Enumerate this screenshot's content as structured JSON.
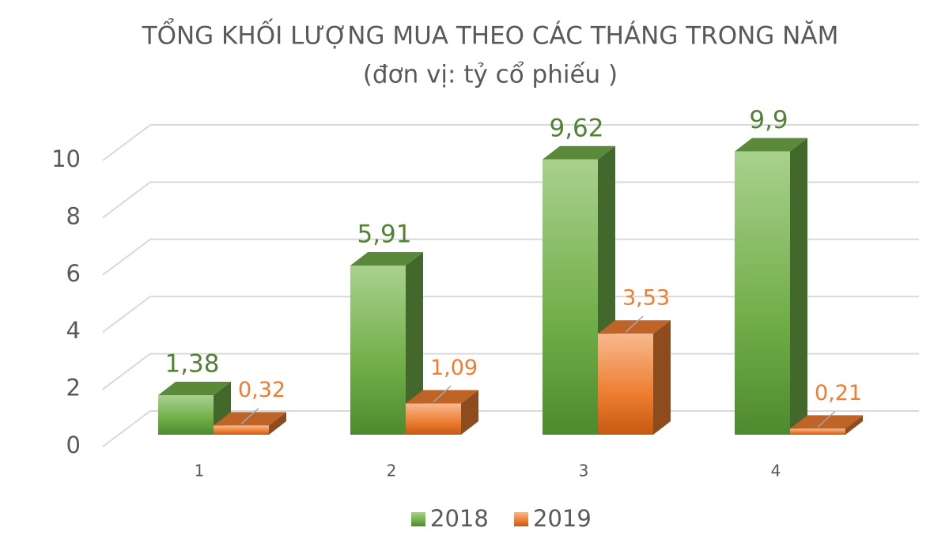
{
  "chart_data": {
    "type": "bar3d",
    "title": "TỔNG KHỐI LƯỢNG MUA THEO CÁC THÁNG TRONG NĂM",
    "subtitle": "(đơn vị: tỷ cổ phiếu )",
    "categories": [
      "1",
      "2",
      "3",
      "4"
    ],
    "series": [
      {
        "name": "2018",
        "color": "#70ad47",
        "values": [
          1.38,
          5.91,
          9.62,
          9.9
        ],
        "value_labels": [
          "1,38",
          "5,91",
          "9,62",
          "9,9"
        ]
      },
      {
        "name": "2019",
        "color": "#ed7d31",
        "values": [
          0.32,
          1.09,
          3.53,
          0.21
        ],
        "value_labels": [
          "0,32",
          "1,09",
          "3,53",
          "0,21"
        ]
      }
    ],
    "ylim": [
      0,
      10
    ],
    "yticks": [
      0,
      2,
      4,
      6,
      8,
      10
    ],
    "grid": true,
    "legend": "bottom"
  }
}
